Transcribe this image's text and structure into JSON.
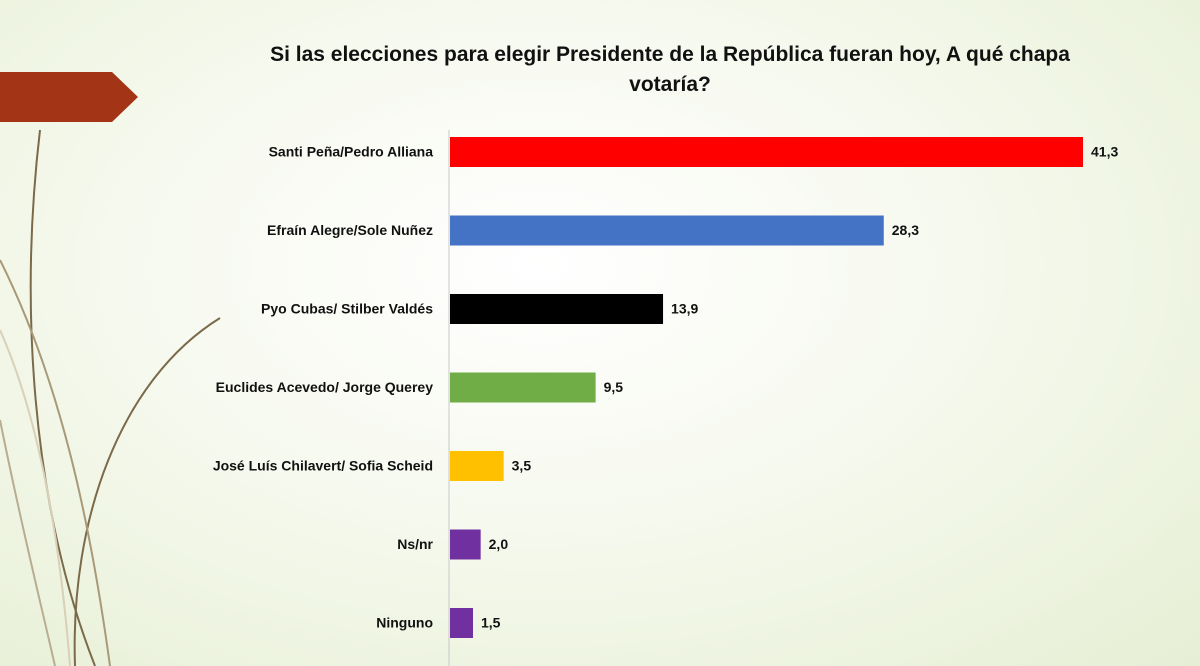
{
  "chart_data": {
    "type": "bar",
    "orientation": "horizontal",
    "title": "Si las elecciones para elegir Presidente de la República fueran hoy, A qué chapa votaría?",
    "categories": [
      "Santi Peña/Pedro Alliana",
      "Efraín Alegre/Sole Nuñez",
      "Pyo Cubas/ Stilber Valdés",
      "Euclides Acevedo/ Jorge Querey",
      "José Luís Chilavert/ Sofia Scheid",
      "Ns/nr",
      "Ninguno"
    ],
    "values": [
      41.3,
      28.3,
      13.9,
      9.5,
      3.5,
      2.0,
      1.5
    ],
    "value_labels": [
      "41,3",
      "28,3",
      "13,9",
      "9,5",
      "3,5",
      "2,0",
      "1,5"
    ],
    "colors": [
      "#ff0000",
      "#4472c4",
      "#000000",
      "#70ad47",
      "#ffc000",
      "#7030a0",
      "#7030a0"
    ]
  }
}
